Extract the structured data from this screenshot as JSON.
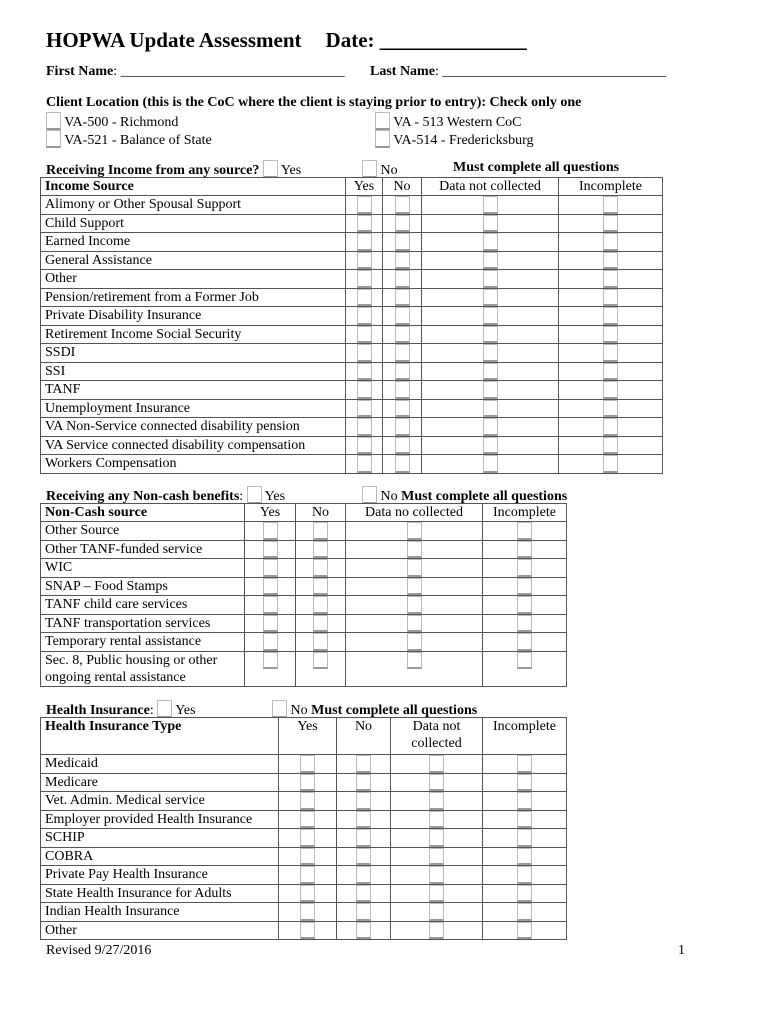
{
  "title": "HOPWA Update Assessment",
  "date_label": "Date: ______________",
  "first_name_label": "First Name",
  "last_name_label": "Last Name",
  "name_line": ": ________________________________",
  "location": {
    "heading": "Client Location (this is the CoC where the client is staying prior to entry): Check only one",
    "options": [
      "VA-500  - Richmond",
      "VA-521 -  Balance of State",
      "VA - 513 Western CoC",
      "VA-514 -  Fredericksburg"
    ]
  },
  "income": {
    "question": "Receiving Income from any source?",
    "yes": "Yes",
    "no": "No",
    "must": "Must complete all questions",
    "headers": [
      "Income Source",
      "Yes",
      "No",
      "Data not collected",
      "Incomplete"
    ],
    "rows": [
      "Alimony or Other Spousal Support",
      "Child Support",
      "Earned Income",
      "General Assistance",
      "Other",
      "Pension/retirement from a Former Job",
      "Private Disability Insurance",
      "Retirement Income Social Security",
      "SSDI",
      "SSI",
      "TANF",
      "Unemployment Insurance",
      "VA Non-Service connected disability pension",
      "VA Service connected disability compensation",
      "Workers Compensation"
    ]
  },
  "noncash": {
    "question": "Receiving any Non-cash benefits",
    "colon": ":",
    "yes": "Yes",
    "no": "No",
    "must": "Must complete all questions",
    "headers": [
      "Non-Cash source",
      "Yes",
      "No",
      "Data no collected",
      "Incomplete"
    ],
    "rows": [
      "Other Source",
      "Other TANF-funded service",
      "WIC",
      "SNAP – Food Stamps",
      "TANF child care services",
      "TANF transportation services",
      "Temporary rental assistance",
      "Sec. 8, Public housing or other ongoing rental assistance"
    ]
  },
  "health": {
    "question": "Health Insurance",
    "colon": ":",
    "yes": "Yes",
    "no": "No",
    "must": "Must complete all questions",
    "headers": [
      "Health Insurance Type",
      "Yes",
      "No",
      "Data not collected",
      "Incomplete"
    ],
    "rows": [
      "Medicaid",
      "Medicare",
      "Vet. Admin. Medical service",
      "Employer provided Health Insurance",
      "SCHIP",
      "COBRA",
      "Private Pay Health Insurance",
      "State Health Insurance for Adults",
      "Indian Health Insurance",
      "Other"
    ]
  },
  "footer": {
    "revised": "Revised 9/27/2016",
    "page": "1"
  }
}
